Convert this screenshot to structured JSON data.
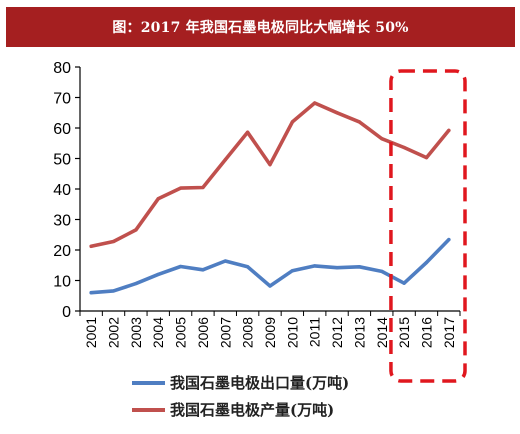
{
  "chart_data": {
    "type": "line",
    "title": "图：2017 年我国石墨电极同比大幅增长 50%",
    "categories": [
      "2001",
      "2002",
      "2003",
      "2004",
      "2005",
      "2006",
      "2007",
      "2008",
      "2009",
      "2010",
      "2011",
      "2012",
      "2013",
      "2014",
      "2015",
      "2016",
      "2017"
    ],
    "series": [
      {
        "name": "我国石墨电极出口量(万吨)",
        "color": "#4f7ec2",
        "values": [
          6.0,
          6.6,
          9.0,
          12.0,
          14.6,
          13.5,
          16.4,
          14.5,
          8.2,
          13.2,
          14.8,
          14.2,
          14.5,
          13.0,
          9.1,
          15.9,
          23.4
        ]
      },
      {
        "name": "我国石墨电极产量(万吨)",
        "color": "#c0504d",
        "values": [
          21.2,
          22.8,
          26.6,
          36.8,
          40.3,
          40.5,
          49.6,
          58.6,
          48.0,
          62.0,
          68.2,
          65.0,
          62.0,
          56.5,
          53.6,
          50.3,
          59.2
        ]
      }
    ],
    "ylim": [
      0,
      80
    ],
    "yticks": [
      0,
      10,
      20,
      30,
      40,
      50,
      60,
      70,
      80
    ],
    "grid": false,
    "legend_position": "bottom-left",
    "highlight": {
      "from": "2015",
      "to": "2017",
      "color": "#e0171e",
      "style": "dashed-rounded-box"
    }
  }
}
